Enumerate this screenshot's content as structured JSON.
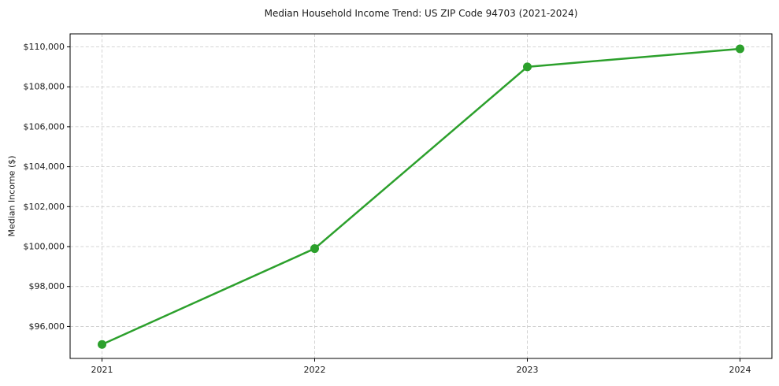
{
  "chart_data": {
    "type": "line",
    "title": "Median Household Income Trend: US ZIP Code 94703 (2021-2024)",
    "xlabel": "",
    "ylabel": "Median Income ($)",
    "categories": [
      "2021",
      "2022",
      "2023",
      "2024"
    ],
    "series": [
      {
        "name": "Median Household Income",
        "values": [
          95100,
          99900,
          109000,
          109900
        ]
      }
    ],
    "y_ticks": [
      96000,
      98000,
      100000,
      102000,
      104000,
      106000,
      108000,
      110000
    ],
    "y_tick_labels": [
      "$96,000",
      "$98,000",
      "$100,000",
      "$102,000",
      "$104,000",
      "$106,000",
      "$108,000",
      "$110,000"
    ],
    "ylim": [
      94400,
      110650
    ],
    "xlim": [
      -0.15,
      3.15
    ],
    "grid": true,
    "grid_style": "dashed",
    "legend_position": "none",
    "line_color": "#2ca02c",
    "marker": "circle",
    "marker_color": "#2ca02c",
    "grid_color": "#c9c9c9",
    "spine_color": "#000000",
    "background_color": "#ffffff"
  }
}
